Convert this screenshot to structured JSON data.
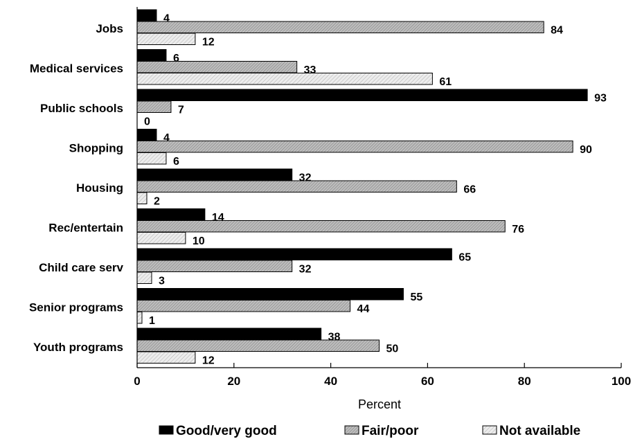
{
  "chart_data": {
    "type": "bar",
    "orientation": "horizontal",
    "categories": [
      "Jobs",
      "Medical services",
      "Public schools",
      "Shopping",
      "Housing",
      "Rec/entertain",
      "Child care serv",
      "Senior programs",
      "Youth programs"
    ],
    "series": [
      {
        "name": "Good/very good",
        "values": [
          4,
          6,
          93,
          4,
          32,
          14,
          65,
          55,
          38
        ],
        "color": "#000000"
      },
      {
        "name": "Fair/poor",
        "values": [
          84,
          33,
          7,
          90,
          66,
          76,
          32,
          44,
          50
        ],
        "color": "#b8b8b8"
      },
      {
        "name": "Not available",
        "values": [
          12,
          61,
          0,
          6,
          2,
          10,
          3,
          1,
          12
        ],
        "color": "#e8e8e8"
      }
    ],
    "xlabel": "Percent",
    "ylabel": "",
    "xlim": [
      0,
      100
    ],
    "xticks": [
      0,
      20,
      40,
      60,
      80,
      100
    ],
    "grid": false,
    "legend": "bottom"
  }
}
